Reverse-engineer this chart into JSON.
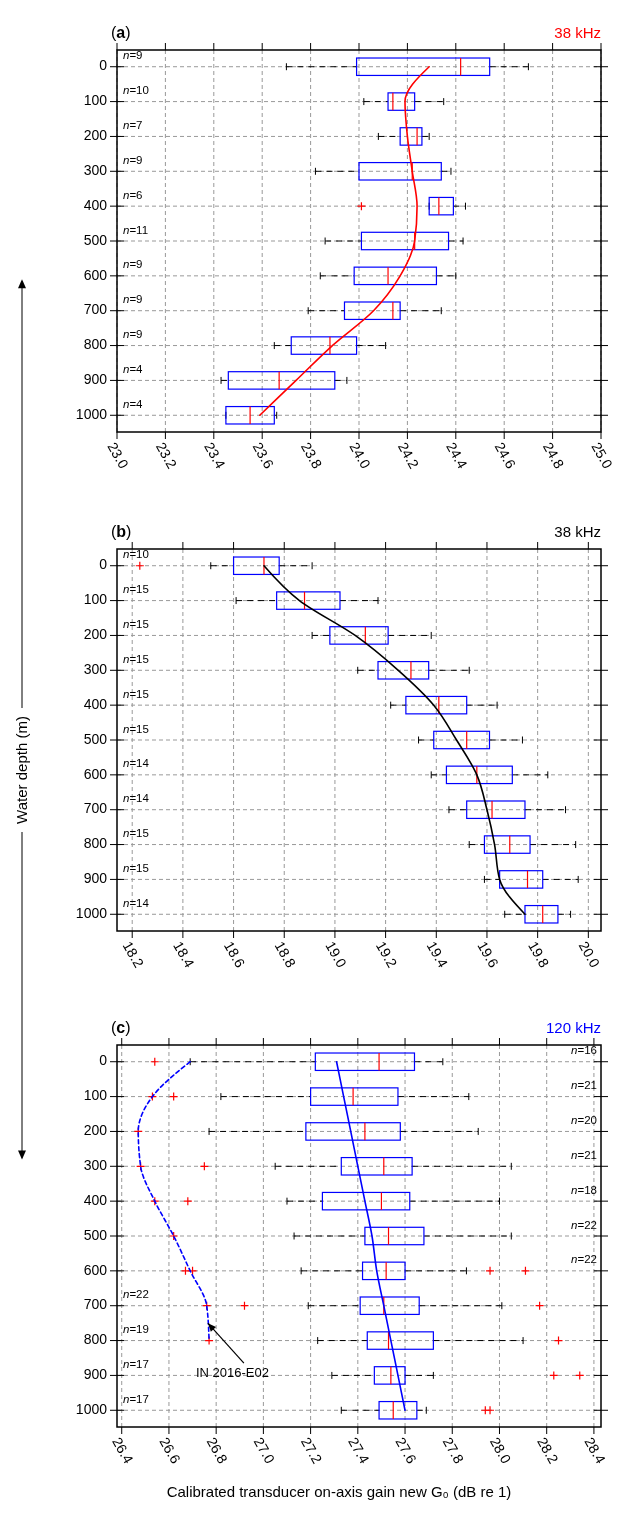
{
  "chart_data": [
    {
      "type": "box",
      "orientation": "horizontal",
      "title": "38 kHz",
      "grid": true,
      "categories": [
        "0",
        "100",
        "200",
        "300",
        "400",
        "500",
        "600",
        "700",
        "800",
        "900",
        "1000"
      ],
      "xlim": [
        23.0,
        25.0
      ],
      "xticks": [
        {
          "value": 23,
          "label": "23.0"
        },
        23.2,
        23.4,
        23.6,
        23.8,
        {
          "value": 24,
          "label": "24.0"
        },
        24.2,
        24.4,
        24.6,
        24.8,
        {
          "value": 25,
          "label": "25.0"
        }
      ],
      "series": [
        {
          "type": "box",
          "color": "#0000ff",
          "boxes": [
            {
              "low": 23.7,
              "q1": 23.99,
              "median": 24.42,
              "q3": 24.54,
              "high": 24.7
            },
            {
              "low": 24.02,
              "q1": 24.12,
              "median": 24.14,
              "q3": 24.23,
              "high": 24.35
            },
            {
              "low": 24.08,
              "q1": 24.17,
              "median": 24.24,
              "q3": 24.26,
              "high": 24.29
            },
            {
              "low": 23.82,
              "q1": 24.0,
              "median": 24.22,
              "q3": 24.34,
              "high": 24.38
            },
            {
              "low": 24.29,
              "q1": 24.29,
              "median": 24.33,
              "q3": 24.39,
              "high": 24.44,
              "outliers": [
                24.01
              ]
            },
            {
              "low": 23.86,
              "q1": 24.01,
              "median": 24.23,
              "q3": 24.37,
              "high": 24.43
            },
            {
              "low": 23.84,
              "q1": 23.98,
              "median": 24.12,
              "q3": 24.32,
              "high": 24.4
            },
            {
              "low": 23.79,
              "q1": 23.94,
              "median": 24.14,
              "q3": 24.17,
              "high": 24.34
            },
            {
              "low": 23.65,
              "q1": 23.72,
              "median": 23.88,
              "q3": 23.99,
              "high": 24.11
            },
            {
              "low": 23.43,
              "q1": 23.46,
              "median": 23.67,
              "q3": 23.9,
              "high": 23.95
            },
            {
              "low": 23.45,
              "q1": 23.45,
              "median": 23.55,
              "q3": 23.65,
              "high": 23.66
            }
          ]
        },
        {
          "type": "line",
          "color": "#ff0000",
          "values": [
            24.29,
            24.19,
            24.2,
            24.22,
            24.24,
            24.23,
            24.17,
            24.06,
            23.89,
            23.74,
            23.59
          ]
        }
      ],
      "annotations": [
        "(a)",
        "n=9",
        "n=10",
        "n=7",
        "n=9",
        "n=6",
        "n=11",
        "n=9",
        "n=9",
        "n=9",
        "n=4",
        "n=4"
      ]
    },
    {
      "type": "box",
      "orientation": "horizontal",
      "title": "38 kHz",
      "ylabel": "Water depth (m)",
      "grid": true,
      "categories": [
        "0",
        "100",
        "200",
        "300",
        "400",
        "500",
        "600",
        "700",
        "800",
        "900",
        "1000"
      ],
      "xlim": [
        18.14,
        20.05
      ],
      "xticks": [
        18.2,
        18.4,
        18.6,
        18.8,
        {
          "value": 19,
          "label": "19.0"
        },
        19.2,
        19.4,
        19.6,
        19.8,
        {
          "value": 20,
          "label": "20.0"
        }
      ],
      "series": [
        {
          "type": "box",
          "color": "#0000ff",
          "boxes": [
            {
              "low": 18.51,
              "q1": 18.6,
              "median": 18.72,
              "q3": 18.78,
              "high": 18.91,
              "outliers": [
                18.23
              ]
            },
            {
              "low": 18.61,
              "q1": 18.77,
              "median": 18.88,
              "q3": 19.02,
              "high": 19.17
            },
            {
              "low": 18.91,
              "q1": 18.98,
              "median": 19.12,
              "q3": 19.21,
              "high": 19.38
            },
            {
              "low": 19.09,
              "q1": 19.17,
              "median": 19.3,
              "q3": 19.37,
              "high": 19.53
            },
            {
              "low": 19.22,
              "q1": 19.28,
              "median": 19.41,
              "q3": 19.52,
              "high": 19.64
            },
            {
              "low": 19.33,
              "q1": 19.39,
              "median": 19.52,
              "q3": 19.61,
              "high": 19.74
            },
            {
              "low": 19.38,
              "q1": 19.44,
              "median": 19.56,
              "q3": 19.7,
              "high": 19.84
            },
            {
              "low": 19.45,
              "q1": 19.52,
              "median": 19.62,
              "q3": 19.75,
              "high": 19.91
            },
            {
              "low": 19.53,
              "q1": 19.59,
              "median": 19.69,
              "q3": 19.77,
              "high": 19.95
            },
            {
              "low": 19.59,
              "q1": 19.65,
              "median": 19.76,
              "q3": 19.82,
              "high": 19.96
            },
            {
              "low": 19.67,
              "q1": 19.75,
              "median": 19.82,
              "q3": 19.88,
              "high": 19.93
            }
          ]
        },
        {
          "type": "line",
          "color": "#000000",
          "values": [
            18.72,
            18.86,
            19.08,
            19.25,
            19.39,
            19.48,
            19.56,
            19.6,
            19.63,
            19.65,
            19.75
          ]
        }
      ],
      "annotations": [
        "(b)",
        "n=10",
        "n=15",
        "n=15",
        "n=15",
        "n=15",
        "n=15",
        "n=14",
        "n=14",
        "n=15",
        "n=15",
        "n=14"
      ]
    },
    {
      "type": "box",
      "orientation": "horizontal",
      "title": "120 kHz",
      "xlabel": "Calibrated transducer on-axis gain new G₀ (dB re 1)",
      "grid": true,
      "categories": [
        "0",
        "100",
        "200",
        "300",
        "400",
        "500",
        "600",
        "700",
        "800",
        "900",
        "1000"
      ],
      "xlim": [
        26.38,
        28.43
      ],
      "xticks": [
        26.4,
        26.6,
        26.8,
        {
          "value": 27,
          "label": "27.0"
        },
        27.2,
        27.4,
        27.6,
        27.8,
        {
          "value": 28,
          "label": "28.0"
        },
        28.2,
        28.4
      ],
      "series": [
        {
          "type": "box",
          "color": "#0000ff",
          "boxes": [
            {
              "low": 26.69,
              "q1": 27.22,
              "median": 27.49,
              "q3": 27.64,
              "high": 27.76,
              "outliers": [
                26.54
              ]
            },
            {
              "low": 26.82,
              "q1": 27.2,
              "median": 27.38,
              "q3": 27.57,
              "high": 27.87,
              "outliers": [
                26.53,
                26.62
              ]
            },
            {
              "low": 26.77,
              "q1": 27.18,
              "median": 27.43,
              "q3": 27.58,
              "high": 27.91,
              "outliers": [
                26.47
              ]
            },
            {
              "low": 27.05,
              "q1": 27.33,
              "median": 27.51,
              "q3": 27.63,
              "high": 28.05,
              "outliers": [
                26.48,
                26.75
              ]
            },
            {
              "low": 27.1,
              "q1": 27.25,
              "median": 27.5,
              "q3": 27.62,
              "high": 28.0,
              "outliers": [
                26.54,
                26.68
              ]
            },
            {
              "low": 27.13,
              "q1": 27.43,
              "median": 27.53,
              "q3": 27.68,
              "high": 28.05,
              "outliers": [
                26.62
              ]
            },
            {
              "low": 27.16,
              "q1": 27.42,
              "median": 27.52,
              "q3": 27.6,
              "high": 27.86,
              "outliers": [
                26.67,
                26.7,
                27.96,
                28.11
              ]
            },
            {
              "low": 27.19,
              "q1": 27.41,
              "median": 27.51,
              "q3": 27.66,
              "high": 28.01,
              "outliers": [
                26.76,
                26.92,
                28.17
              ]
            },
            {
              "low": 27.23,
              "q1": 27.44,
              "median": 27.53,
              "q3": 27.72,
              "high": 28.1,
              "outliers": [
                26.77,
                28.25
              ]
            },
            {
              "low": 27.29,
              "q1": 27.47,
              "median": 27.54,
              "q3": 27.6,
              "high": 27.72,
              "outliers": [
                28.23,
                28.34
              ]
            },
            {
              "low": 27.33,
              "q1": 27.49,
              "median": 27.55,
              "q3": 27.65,
              "high": 27.69,
              "outliers": [
                27.94,
                27.96
              ]
            }
          ]
        },
        {
          "type": "line",
          "color": "#0000ff",
          "values": [
            27.31,
            27.34,
            27.37,
            27.4,
            27.43,
            27.46,
            27.48,
            27.51,
            27.54,
            27.57,
            27.6
          ]
        },
        {
          "type": "line",
          "name": "IN 2016-E02",
          "color": "#0000ff",
          "line_style": "dashed",
          "values": [
            26.69,
            26.53,
            26.47,
            26.48,
            26.54,
            26.62,
            26.69,
            26.76,
            26.77,
            null,
            null
          ]
        }
      ],
      "annotations": [
        "(c)",
        "n=16",
        "n=21",
        "n=20",
        "n=21",
        "n=18",
        "n=22",
        "n=22",
        "n=22",
        "n=19",
        "n=17",
        "n=17"
      ]
    }
  ]
}
